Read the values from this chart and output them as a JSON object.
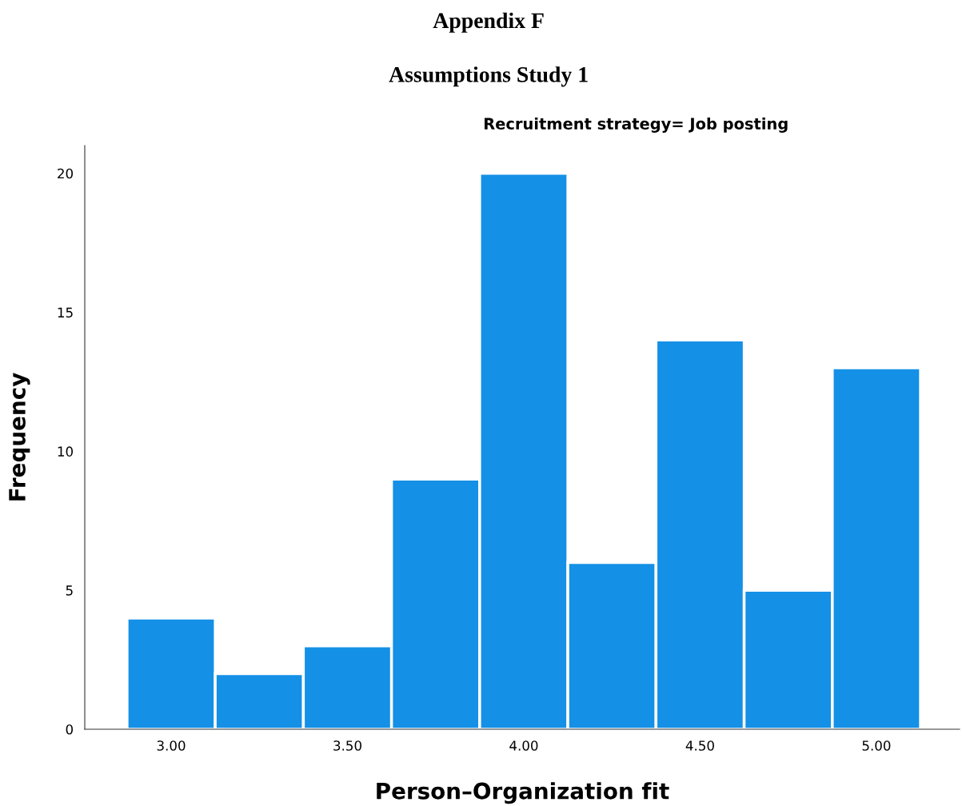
{
  "chart_data": {
    "type": "histogram",
    "title": "Recruitment strategy= Job posting",
    "annotations": [
      "Appendix F",
      "Assumptions Study 1"
    ],
    "xlabel": "Person–Organization fit",
    "ylabel": "Frequency",
    "bins": [
      2.875,
      3.125,
      3.375,
      3.625,
      3.875,
      4.125,
      4.375,
      4.625,
      4.875,
      5.125
    ],
    "values": [
      4,
      2,
      3,
      9,
      20,
      6,
      14,
      5,
      13
    ],
    "color": "#1490e6",
    "xlim": [
      2.755,
      5.236
    ],
    "xticks": [
      {
        "value": 3,
        "label": "3.00"
      },
      {
        "value": 3.5,
        "label": "3.50"
      },
      {
        "value": 4,
        "label": "4.00"
      },
      {
        "value": 4.5,
        "label": "4.50"
      },
      {
        "value": 5,
        "label": "5.00"
      }
    ],
    "ylim": [
      0,
      21
    ],
    "yticks": [
      0,
      5,
      10,
      15,
      20
    ],
    "grid": false,
    "legend": false
  }
}
